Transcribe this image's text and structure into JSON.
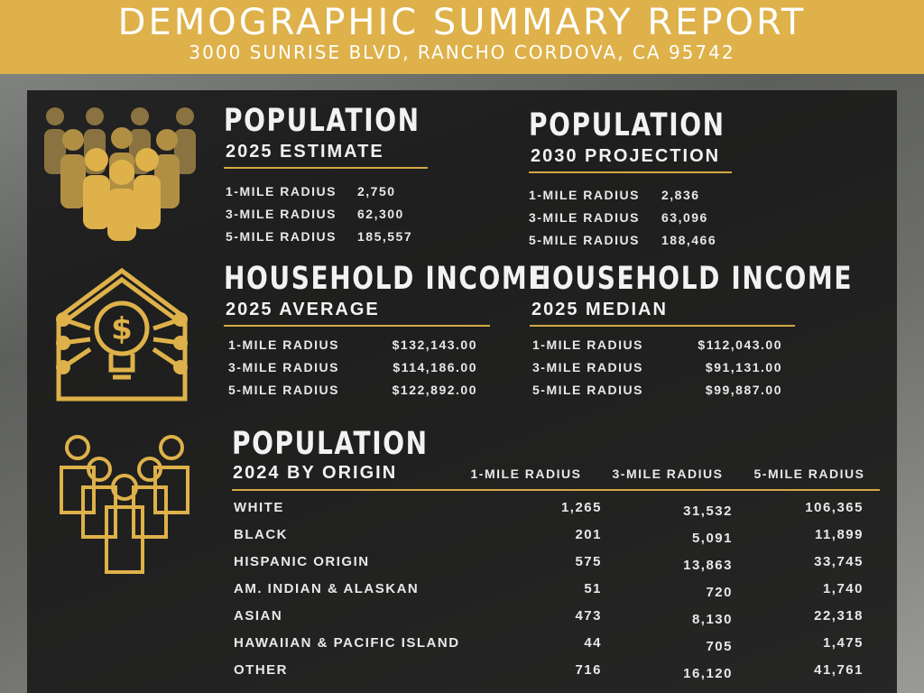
{
  "header": {
    "title": "DEMOGRAPHIC SUMMARY REPORT",
    "address": "3000 SUNRISE BLVD, RANCHO CORDOVA, CA 95742"
  },
  "sections": [
    {
      "title": "POPULATION",
      "subtitle": "2025 ESTIMATE",
      "rows": [
        [
          "1-MILE RADIUS",
          "2,750"
        ],
        [
          "3-MILE RADIUS",
          "62,300"
        ],
        [
          "5-MILE RADIUS",
          "185,557"
        ]
      ]
    },
    {
      "title": "POPULATION",
      "subtitle": "2030 PROJECTION",
      "rows": [
        [
          "1-MILE RADIUS",
          "2,836"
        ],
        [
          "3-MILE RADIUS",
          "63,096"
        ],
        [
          "5-MILE RADIUS",
          "188,466"
        ]
      ]
    },
    {
      "title": "HOUSEHOLD INCOME",
      "subtitle": "2025 AVERAGE",
      "rows": [
        [
          "1-MILE RADIUS",
          "$132,143.00"
        ],
        [
          "3-MILE RADIUS",
          "$114,186.00"
        ],
        [
          "5-MILE RADIUS",
          "$122,892.00"
        ]
      ]
    },
    {
      "title": "HOUSEHOLD INCOME",
      "subtitle": "2025 MEDIAN",
      "rows": [
        [
          "1-MILE RADIUS",
          "$112,043.00"
        ],
        [
          "3-MILE RADIUS",
          "$91,131.00"
        ],
        [
          "5-MILE RADIUS",
          "$99,887.00"
        ]
      ]
    }
  ],
  "origin": {
    "title": "POPULATION",
    "subtitle": "2024 BY ORIGIN",
    "columns": [
      "1-MILE RADIUS",
      "3-MILE RADIUS",
      "5-MILE RADIUS"
    ],
    "rows": [
      [
        "WHITE",
        "1,265",
        "31,532",
        "106,365"
      ],
      [
        "BLACK",
        "201",
        "5,091",
        "11,899"
      ],
      [
        "HISPANIC ORIGIN",
        "575",
        "13,863",
        "33,745"
      ],
      [
        "AM. INDIAN & ALASKAN",
        "51",
        "720",
        "1,740"
      ],
      [
        "ASIAN",
        "473",
        "8,130",
        "22,318"
      ],
      [
        "HAWAIIAN & PACIFIC ISLAND",
        "44",
        "705",
        "1,475"
      ],
      [
        "OTHER",
        "716",
        "16,120",
        "41,761"
      ]
    ]
  }
}
